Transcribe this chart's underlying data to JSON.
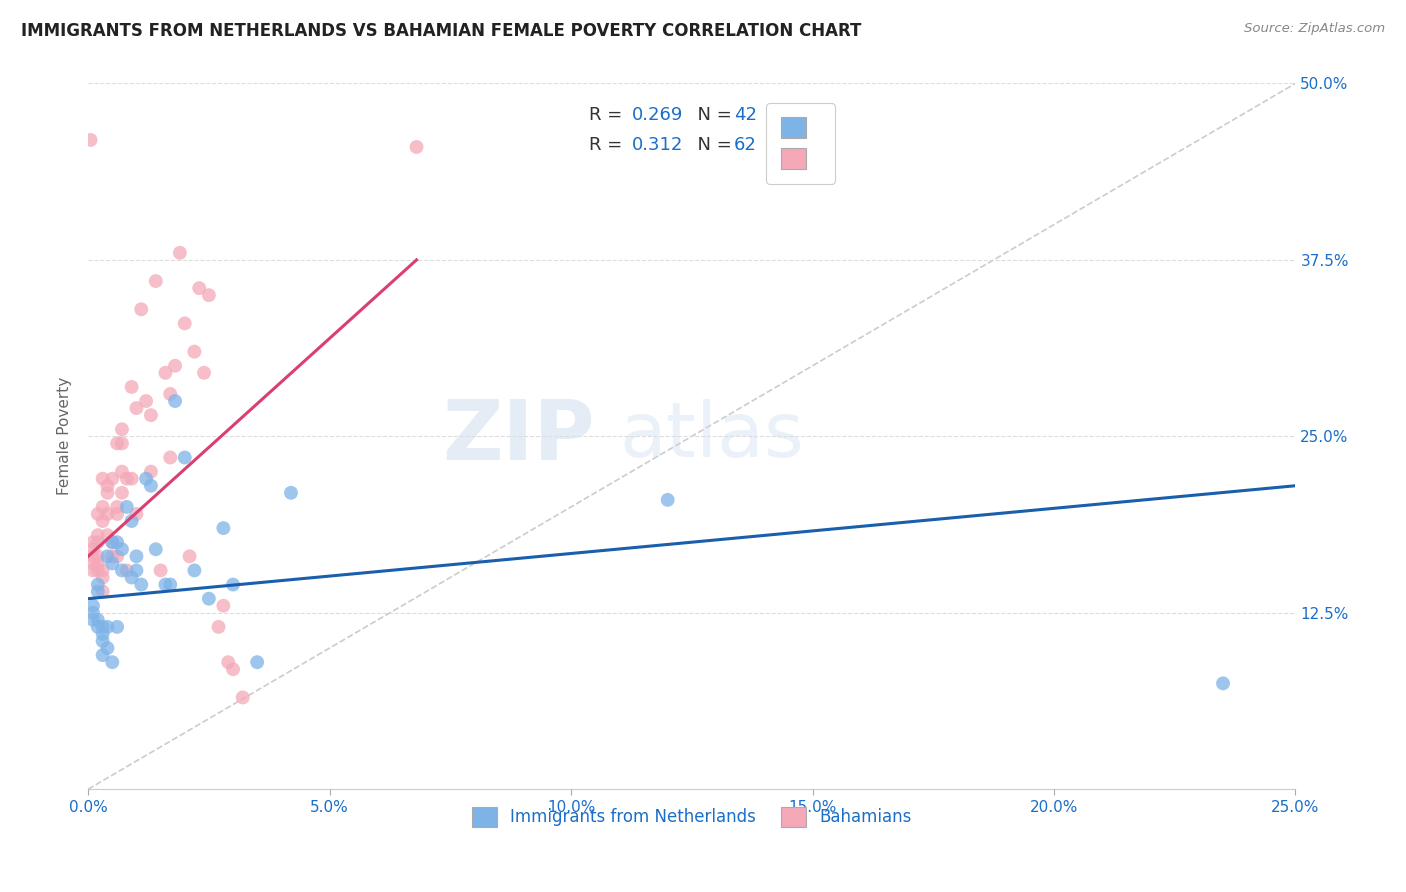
{
  "title": "IMMIGRANTS FROM NETHERLANDS VS BAHAMIAN FEMALE POVERTY CORRELATION CHART",
  "source": "Source: ZipAtlas.com",
  "ylabel": "Female Poverty",
  "xlim": [
    0.0,
    0.25
  ],
  "ylim": [
    0.0,
    0.5
  ],
  "xtick_values": [
    0.0,
    0.05,
    0.1,
    0.15,
    0.2,
    0.25
  ],
  "ytick_values": [
    0.125,
    0.25,
    0.375,
    0.5
  ],
  "legend1_R": "0.269",
  "legend1_N": "42",
  "legend2_R": "0.312",
  "legend2_N": "62",
  "color_blue": "#7EB3E8",
  "color_pink": "#F4A8B8",
  "color_blue_line": "#1A5FAB",
  "color_pink_line": "#D94070",
  "color_diag": "#CCCCCC",
  "color_text_blue": "#1B6EC9",
  "blue_line_x0": 0.0,
  "blue_line_y0": 0.135,
  "blue_line_x1": 0.25,
  "blue_line_y1": 0.215,
  "pink_line_x0": 0.0,
  "pink_line_y0": 0.165,
  "pink_line_x1": 0.068,
  "pink_line_y1": 0.375,
  "blue_scatter_x": [
    0.001,
    0.001,
    0.001,
    0.002,
    0.002,
    0.002,
    0.002,
    0.003,
    0.003,
    0.003,
    0.003,
    0.004,
    0.004,
    0.004,
    0.005,
    0.005,
    0.005,
    0.006,
    0.006,
    0.007,
    0.007,
    0.008,
    0.009,
    0.009,
    0.01,
    0.01,
    0.011,
    0.012,
    0.013,
    0.014,
    0.016,
    0.017,
    0.018,
    0.02,
    0.022,
    0.025,
    0.028,
    0.03,
    0.035,
    0.042,
    0.12,
    0.235
  ],
  "blue_scatter_y": [
    0.13,
    0.125,
    0.12,
    0.115,
    0.12,
    0.14,
    0.145,
    0.105,
    0.11,
    0.115,
    0.095,
    0.1,
    0.115,
    0.165,
    0.09,
    0.16,
    0.175,
    0.115,
    0.175,
    0.155,
    0.17,
    0.2,
    0.15,
    0.19,
    0.155,
    0.165,
    0.145,
    0.22,
    0.215,
    0.17,
    0.145,
    0.145,
    0.275,
    0.235,
    0.155,
    0.135,
    0.185,
    0.145,
    0.09,
    0.21,
    0.205,
    0.075
  ],
  "pink_scatter_x": [
    0.0005,
    0.001,
    0.001,
    0.001,
    0.001,
    0.001,
    0.002,
    0.002,
    0.002,
    0.002,
    0.002,
    0.002,
    0.003,
    0.003,
    0.003,
    0.003,
    0.003,
    0.003,
    0.004,
    0.004,
    0.004,
    0.004,
    0.005,
    0.005,
    0.005,
    0.006,
    0.006,
    0.006,
    0.006,
    0.007,
    0.007,
    0.007,
    0.007,
    0.008,
    0.008,
    0.009,
    0.009,
    0.01,
    0.01,
    0.011,
    0.012,
    0.013,
    0.013,
    0.014,
    0.015,
    0.016,
    0.017,
    0.017,
    0.018,
    0.019,
    0.02,
    0.021,
    0.022,
    0.023,
    0.024,
    0.025,
    0.027,
    0.028,
    0.029,
    0.03,
    0.032,
    0.068
  ],
  "pink_scatter_y": [
    0.46,
    0.155,
    0.16,
    0.165,
    0.17,
    0.175,
    0.155,
    0.16,
    0.165,
    0.175,
    0.18,
    0.195,
    0.14,
    0.15,
    0.155,
    0.19,
    0.2,
    0.22,
    0.18,
    0.195,
    0.21,
    0.215,
    0.165,
    0.175,
    0.22,
    0.165,
    0.195,
    0.2,
    0.245,
    0.21,
    0.225,
    0.245,
    0.255,
    0.155,
    0.22,
    0.22,
    0.285,
    0.195,
    0.27,
    0.34,
    0.275,
    0.225,
    0.265,
    0.36,
    0.155,
    0.295,
    0.235,
    0.28,
    0.3,
    0.38,
    0.33,
    0.165,
    0.31,
    0.355,
    0.295,
    0.35,
    0.115,
    0.13,
    0.09,
    0.085,
    0.065,
    0.455
  ]
}
